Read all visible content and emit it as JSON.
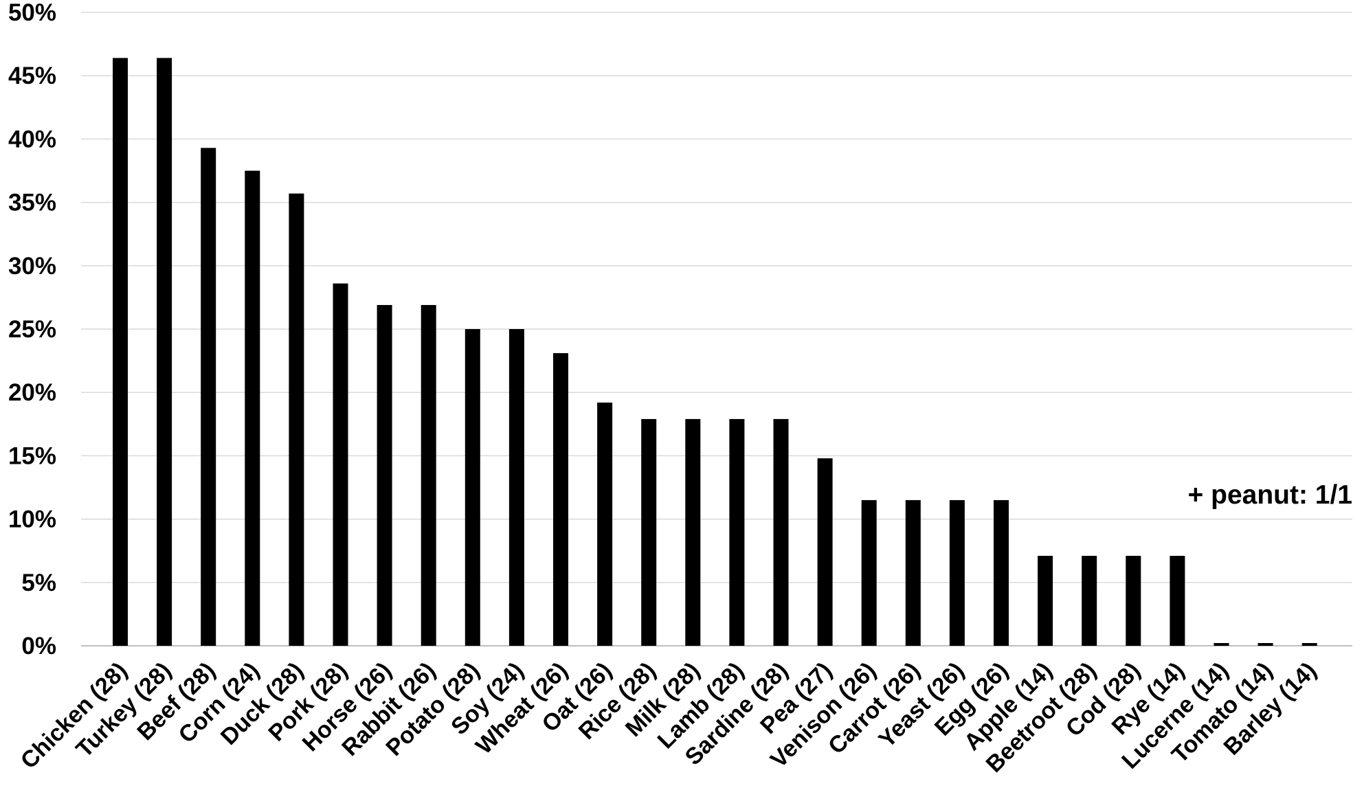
{
  "chart_data": {
    "type": "bar",
    "categories": [
      "Chicken (28)",
      "Turkey (28)",
      "Beef (28)",
      "Corn (24)",
      "Duck (28)",
      "Pork (28)",
      "Horse (26)",
      "Rabbit (26)",
      "Potato (28)",
      "Soy (24)",
      "Wheat (26)",
      "Oat (26)",
      "Rice (28)",
      "Milk (28)",
      "Lamb (28)",
      "Sardine (28)",
      "Pea (27)",
      "Venison (26)",
      "Carrot (26)",
      "Yeast (26)",
      "Egg (26)",
      "Apple (14)",
      "Beetroot (28)",
      "Cod (28)",
      "Rye (14)",
      "Lucerne (14)",
      "Tomato (14)",
      "Barley (14)"
    ],
    "values": [
      46.4,
      46.4,
      39.3,
      37.5,
      35.7,
      28.6,
      26.9,
      26.9,
      25.0,
      25.0,
      23.1,
      19.2,
      17.9,
      17.9,
      17.9,
      17.9,
      14.8,
      11.5,
      11.5,
      11.5,
      11.5,
      7.1,
      7.1,
      7.1,
      7.1,
      0,
      0,
      0
    ],
    "yticks": [
      "0%",
      "5%",
      "10%",
      "15%",
      "20%",
      "25%",
      "30%",
      "35%",
      "40%",
      "45%",
      "50%"
    ],
    "ylim": [
      0,
      50
    ],
    "title": "",
    "xlabel": "",
    "ylabel": "",
    "grid": true,
    "bar_color": "#000000",
    "grid_color": "#d9d9d9",
    "annotations": [
      "+ peanut: 1/1"
    ]
  }
}
